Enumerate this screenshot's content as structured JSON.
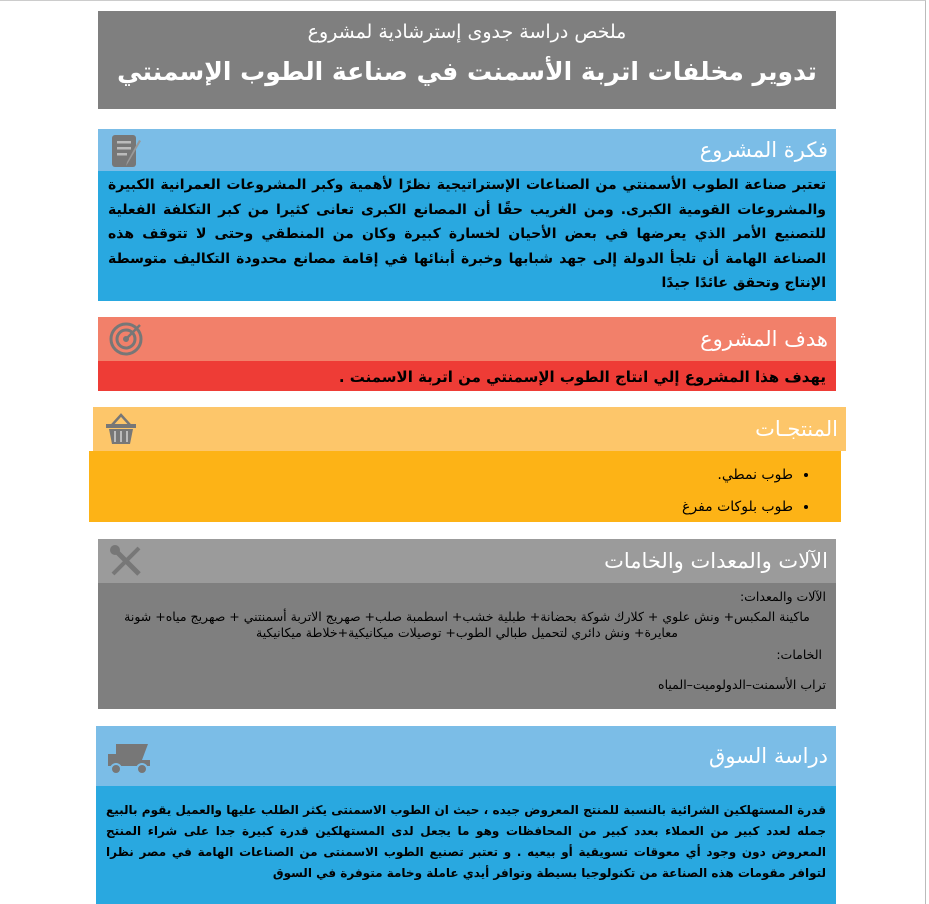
{
  "title": {
    "subtitle": "ملخص دراسة جدوى إسترشادية لمشروع",
    "main": "تدوير مخلفات اتربة الأسمنت في صناعة الطوب الإسمنتي"
  },
  "idea": {
    "heading": "فكرة المشروع",
    "icon": "pen-document-icon",
    "text": "تعتبر صناعة الطوب الأسمنتي من الصناعات الإستراتيجية نظرًا لأهمية وكبر المشروعات العمرانية الكبيرة والمشروعات القومية الكبرى. ومن الغريب حقًا أن المصانع الكبرى تعانى كثيرا من كبر التكلفة الفعلية للتصنيع الأمر الذي يعرضها في بعض الأحيان لخسارة كبيرة وكان من المنطقي وحتى لا تتوقف هذه الصناعة الهامة أن تلجأ الدولة إلى جهد شبابها وخبرة أبنائها في إقامة مصانع محدودة التكاليف متوسطة الإنتاج وتحقق عائدًا جيدًا"
  },
  "goal": {
    "heading": "هدف المشروع",
    "icon": "target-icon",
    "text": "يهدف هذا المشروع إلي انتاج الطوب الإسمنتي من اتربة الاسمنت ."
  },
  "products": {
    "heading": "المنتجـات",
    "icon": "basket-icon",
    "items": [
      "طوب نمطي.",
      "طوب بلوكات مفرغ"
    ]
  },
  "machines": {
    "heading": "الآلات والمعدات والخامات",
    "icon": "tools-icon",
    "equip_label": "الآلات والمعدات:",
    "equip_text": "ماكينة المكبس+ ونش علوي + كلارك شوكة بحضانة+ طبلية خشب+ اسطمبة صلب+ صهريج الاتربة أسمنتني + صهريج مياه+ شونة معايرة+ ونش دائري لتحميل طبالي الطوب+ توصيلات ميكانيكية+خلاطة ميكانيكية",
    "raw_label": "الخامات:",
    "raw_text": "تراب الأسمنت–الدولوميت–المياه"
  },
  "market": {
    "heading": "دراسة السوق",
    "icon": "truck-icon",
    "text": "قدرة المستهلكين الشرائية بالنسبة للمنتج المعروض جيده ، حيث ان الطوب الاسمنتى يكثر الطلب عليها والعميل يقوم بالبيع جمله لعدد كبير من العملاء بعدد كبير من المحافظات وهو ما يجعل لدى المستهلكين قدرة كبيرة جدا على شراء المنتج المعروض دون وجود أي معوقات تسويقية أو بيعيه . و تعتبر تصنيع الطوب الاسمنتى من الصناعات الهامة في مصر نظرا لتوافر مقومات هذه الصناعة من تكنولوجيا بسيطة وتوافر أيدي عاملة وخامة متوفرة في السوق"
  }
}
